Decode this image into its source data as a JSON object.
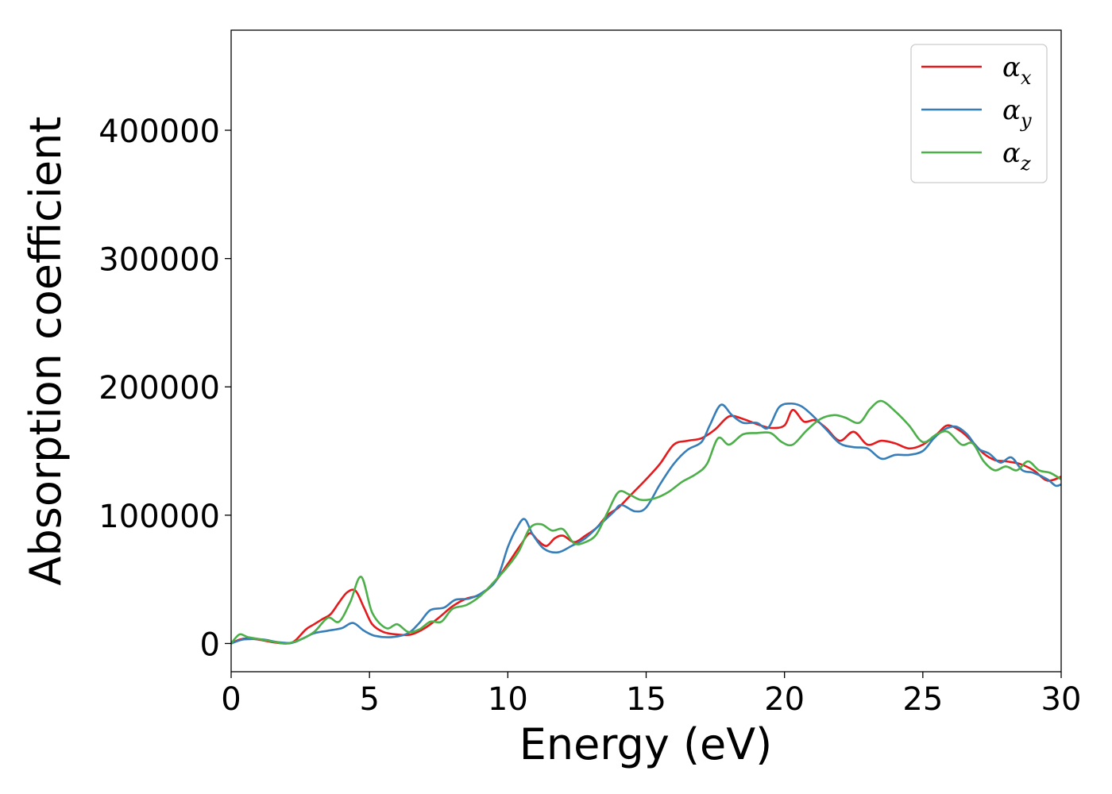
{
  "chart_data": {
    "type": "line",
    "xlabel": "Energy (eV)",
    "ylabel": "Absorption coefficient",
    "xlim": [
      0,
      30
    ],
    "ylim": [
      -22000,
      478000
    ],
    "xticks": [
      0,
      5,
      10,
      15,
      20,
      25,
      30
    ],
    "yticks": [
      0,
      100000,
      200000,
      300000,
      400000
    ],
    "grid": false,
    "legend_position": "top-right",
    "series": [
      {
        "name": "α",
        "subscript": "x",
        "color": "#e41a1c",
        "points": [
          [
            0,
            0
          ],
          [
            0.3,
            3000
          ],
          [
            0.6,
            4000
          ],
          [
            1,
            3000
          ],
          [
            1.5,
            1000
          ],
          [
            2,
            0
          ],
          [
            2.3,
            2000
          ],
          [
            2.7,
            11000
          ],
          [
            3,
            15000
          ],
          [
            3.3,
            19000
          ],
          [
            3.6,
            23000
          ],
          [
            3.9,
            32000
          ],
          [
            4.2,
            40000
          ],
          [
            4.5,
            41000
          ],
          [
            4.8,
            28000
          ],
          [
            5.1,
            15000
          ],
          [
            5.5,
            9000
          ],
          [
            6,
            7000
          ],
          [
            6.5,
            7000
          ],
          [
            7,
            12000
          ],
          [
            7.5,
            20000
          ],
          [
            8,
            29000
          ],
          [
            8.5,
            35000
          ],
          [
            9,
            38000
          ],
          [
            9.5,
            47000
          ],
          [
            10,
            62000
          ],
          [
            10.5,
            78000
          ],
          [
            10.8,
            86000
          ],
          [
            11.1,
            80000
          ],
          [
            11.4,
            76000
          ],
          [
            11.7,
            82000
          ],
          [
            12,
            84000
          ],
          [
            12.4,
            79000
          ],
          [
            12.8,
            84000
          ],
          [
            13.2,
            90000
          ],
          [
            13.6,
            100000
          ],
          [
            14,
            106000
          ],
          [
            14.5,
            117000
          ],
          [
            15,
            128000
          ],
          [
            15.5,
            140000
          ],
          [
            16,
            155000
          ],
          [
            16.5,
            158000
          ],
          [
            17,
            160000
          ],
          [
            17.5,
            167000
          ],
          [
            18,
            177000
          ],
          [
            18.5,
            175000
          ],
          [
            19,
            171000
          ],
          [
            19.5,
            168000
          ],
          [
            20,
            170000
          ],
          [
            20.3,
            182000
          ],
          [
            20.7,
            173000
          ],
          [
            21.1,
            174000
          ],
          [
            21.5,
            168000
          ],
          [
            22,
            158000
          ],
          [
            22.5,
            165000
          ],
          [
            23,
            155000
          ],
          [
            23.5,
            158000
          ],
          [
            24,
            156000
          ],
          [
            24.5,
            152000
          ],
          [
            25,
            155000
          ],
          [
            25.5,
            163000
          ],
          [
            25.9,
            170000
          ],
          [
            26.4,
            165000
          ],
          [
            26.8,
            157000
          ],
          [
            27.2,
            148000
          ],
          [
            27.6,
            143000
          ],
          [
            28,
            142000
          ],
          [
            28.5,
            140000
          ],
          [
            29,
            135000
          ],
          [
            29.5,
            127000
          ],
          [
            30,
            130000
          ]
        ]
      },
      {
        "name": "α",
        "subscript": "y",
        "color": "#377eb8",
        "points": [
          [
            0,
            0
          ],
          [
            0.4,
            3000
          ],
          [
            0.8,
            3500
          ],
          [
            1.2,
            3000
          ],
          [
            1.7,
            1000
          ],
          [
            2.2,
            500
          ],
          [
            2.6,
            4000
          ],
          [
            3,
            8000
          ],
          [
            3.5,
            10000
          ],
          [
            4,
            12000
          ],
          [
            4.4,
            16000
          ],
          [
            4.8,
            10000
          ],
          [
            5.2,
            6000
          ],
          [
            5.8,
            5000
          ],
          [
            6.4,
            8000
          ],
          [
            6.8,
            16000
          ],
          [
            7.2,
            26000
          ],
          [
            7.7,
            28000
          ],
          [
            8.1,
            34000
          ],
          [
            8.6,
            35000
          ],
          [
            9.1,
            40000
          ],
          [
            9.6,
            50000
          ],
          [
            10,
            75000
          ],
          [
            10.3,
            89000
          ],
          [
            10.6,
            97000
          ],
          [
            10.9,
            85000
          ],
          [
            11.3,
            74000
          ],
          [
            11.8,
            71000
          ],
          [
            12.3,
            76000
          ],
          [
            12.8,
            82000
          ],
          [
            13.3,
            92000
          ],
          [
            13.8,
            102000
          ],
          [
            14.1,
            108000
          ],
          [
            14.6,
            103000
          ],
          [
            15,
            106000
          ],
          [
            15.5,
            124000
          ],
          [
            16,
            140000
          ],
          [
            16.5,
            151000
          ],
          [
            17,
            157000
          ],
          [
            17.3,
            170000
          ],
          [
            17.7,
            186000
          ],
          [
            18.1,
            178000
          ],
          [
            18.5,
            172000
          ],
          [
            19,
            172000
          ],
          [
            19.4,
            168000
          ],
          [
            19.8,
            184000
          ],
          [
            20.2,
            187000
          ],
          [
            20.6,
            185000
          ],
          [
            21,
            178000
          ],
          [
            21.5,
            167000
          ],
          [
            22,
            156000
          ],
          [
            22.5,
            153000
          ],
          [
            23,
            152000
          ],
          [
            23.5,
            144000
          ],
          [
            24,
            147000
          ],
          [
            24.5,
            147000
          ],
          [
            25,
            150000
          ],
          [
            25.4,
            160000
          ],
          [
            25.8,
            167000
          ],
          [
            26.2,
            169000
          ],
          [
            26.6,
            163000
          ],
          [
            27,
            152000
          ],
          [
            27.4,
            148000
          ],
          [
            27.8,
            141000
          ],
          [
            28.2,
            145000
          ],
          [
            28.6,
            135000
          ],
          [
            29,
            133000
          ],
          [
            29.5,
            128000
          ],
          [
            29.8,
            123000
          ],
          [
            30,
            124000
          ]
        ]
      },
      {
        "name": "α",
        "subscript": "z",
        "color": "#4daf4a",
        "points": [
          [
            0,
            0
          ],
          [
            0.3,
            7000
          ],
          [
            0.6,
            5000
          ],
          [
            1,
            3500
          ],
          [
            1.5,
            1500
          ],
          [
            2,
            0
          ],
          [
            2.5,
            3000
          ],
          [
            3,
            9000
          ],
          [
            3.5,
            20000
          ],
          [
            3.9,
            17000
          ],
          [
            4.3,
            32000
          ],
          [
            4.7,
            52000
          ],
          [
            5.1,
            24000
          ],
          [
            5.6,
            12000
          ],
          [
            6,
            15000
          ],
          [
            6.4,
            9000
          ],
          [
            6.8,
            11000
          ],
          [
            7.2,
            17000
          ],
          [
            7.6,
            17000
          ],
          [
            8,
            27000
          ],
          [
            8.5,
            30000
          ],
          [
            9,
            37000
          ],
          [
            9.5,
            48000
          ],
          [
            10,
            60000
          ],
          [
            10.4,
            72000
          ],
          [
            10.8,
            90000
          ],
          [
            11.2,
            93000
          ],
          [
            11.6,
            88000
          ],
          [
            12,
            89000
          ],
          [
            12.4,
            78000
          ],
          [
            12.8,
            79000
          ],
          [
            13.2,
            85000
          ],
          [
            13.6,
            102000
          ],
          [
            14,
            118000
          ],
          [
            14.4,
            116000
          ],
          [
            14.8,
            112000
          ],
          [
            15.3,
            113000
          ],
          [
            15.8,
            118000
          ],
          [
            16.3,
            126000
          ],
          [
            16.8,
            132000
          ],
          [
            17.2,
            140000
          ],
          [
            17.6,
            160000
          ],
          [
            18,
            155000
          ],
          [
            18.5,
            163000
          ],
          [
            19,
            164000
          ],
          [
            19.5,
            164000
          ],
          [
            19.9,
            157000
          ],
          [
            20.3,
            155000
          ],
          [
            20.8,
            166000
          ],
          [
            21.3,
            175000
          ],
          [
            21.8,
            178000
          ],
          [
            22.2,
            176000
          ],
          [
            22.7,
            172000
          ],
          [
            23.1,
            183000
          ],
          [
            23.5,
            189000
          ],
          [
            24,
            181000
          ],
          [
            24.5,
            170000
          ],
          [
            25,
            157000
          ],
          [
            25.5,
            163000
          ],
          [
            25.9,
            165000
          ],
          [
            26.4,
            155000
          ],
          [
            26.8,
            156000
          ],
          [
            27.2,
            142000
          ],
          [
            27.6,
            135000
          ],
          [
            28,
            138000
          ],
          [
            28.4,
            135000
          ],
          [
            28.8,
            142000
          ],
          [
            29.2,
            135000
          ],
          [
            29.6,
            133000
          ],
          [
            30,
            128000
          ]
        ]
      }
    ]
  }
}
